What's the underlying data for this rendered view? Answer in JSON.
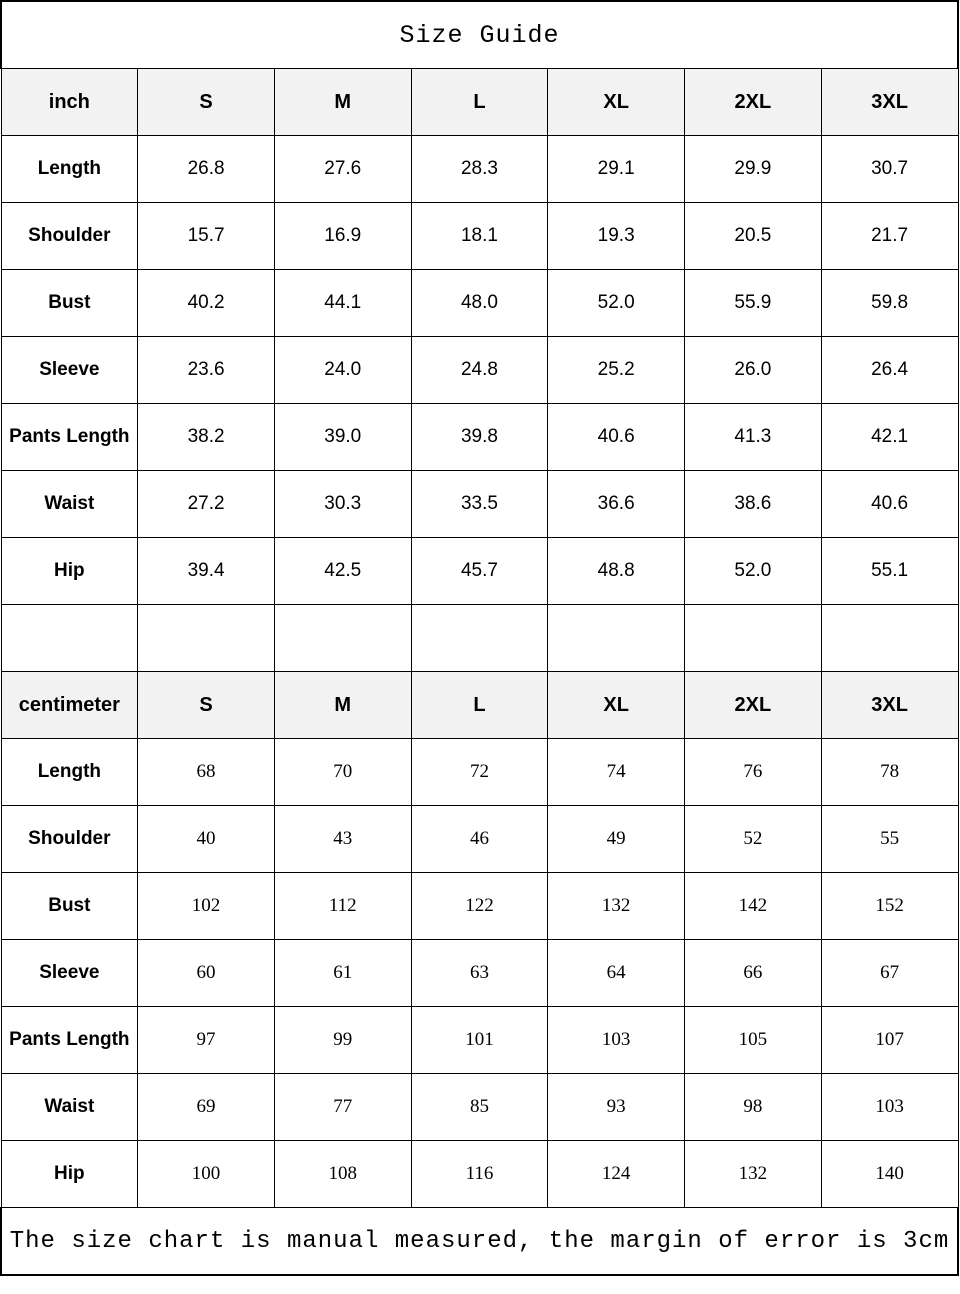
{
  "title": "Size Guide",
  "sizes": [
    "S",
    "M",
    "L",
    "XL",
    "2XL",
    "3XL"
  ],
  "header_bg": "#f2f2f2",
  "inch": {
    "unit_label": "inch",
    "rows": [
      {
        "label": "Length",
        "values": [
          "26.8",
          "27.6",
          "28.3",
          "29.1",
          "29.9",
          "30.7"
        ]
      },
      {
        "label": "Shoulder",
        "values": [
          "15.7",
          "16.9",
          "18.1",
          "19.3",
          "20.5",
          "21.7"
        ]
      },
      {
        "label": "Bust",
        "values": [
          "40.2",
          "44.1",
          "48.0",
          "52.0",
          "55.9",
          "59.8"
        ]
      },
      {
        "label": "Sleeve",
        "values": [
          "23.6",
          "24.0",
          "24.8",
          "25.2",
          "26.0",
          "26.4"
        ]
      },
      {
        "label": "Pants Length",
        "values": [
          "38.2",
          "39.0",
          "39.8",
          "40.6",
          "41.3",
          "42.1"
        ]
      },
      {
        "label": "Waist",
        "values": [
          "27.2",
          "30.3",
          "33.5",
          "36.6",
          "38.6",
          "40.6"
        ]
      },
      {
        "label": "Hip",
        "values": [
          "39.4",
          "42.5",
          "45.7",
          "48.8",
          "52.0",
          "55.1"
        ]
      }
    ]
  },
  "centimeter": {
    "unit_label": "centimeter",
    "rows": [
      {
        "label": "Length",
        "values": [
          "68",
          "70",
          "72",
          "74",
          "76",
          "78"
        ]
      },
      {
        "label": "Shoulder",
        "values": [
          "40",
          "43",
          "46",
          "49",
          "52",
          "55"
        ]
      },
      {
        "label": "Bust",
        "values": [
          "102",
          "112",
          "122",
          "132",
          "142",
          "152"
        ]
      },
      {
        "label": "Sleeve",
        "values": [
          "60",
          "61",
          "63",
          "64",
          "66",
          "67"
        ]
      },
      {
        "label": "Pants Length",
        "values": [
          "97",
          "99",
          "101",
          "103",
          "105",
          "107"
        ]
      },
      {
        "label": "Waist",
        "values": [
          "69",
          "77",
          "85",
          "93",
          "98",
          "103"
        ]
      },
      {
        "label": "Hip",
        "values": [
          "100",
          "108",
          "116",
          "124",
          "132",
          "140"
        ]
      }
    ]
  },
  "note": "The size chart is manual measured, the margin of error is 3cm"
}
